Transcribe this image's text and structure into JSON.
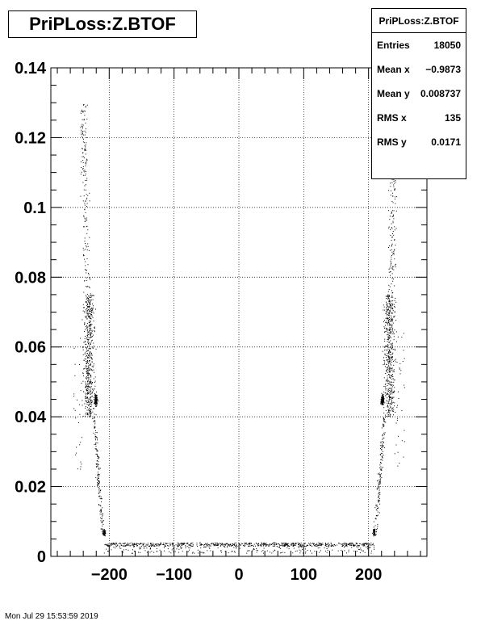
{
  "histogram_title": "PriPLoss:Z.BTOF",
  "stats": {
    "name": "PriPLoss:Z.BTOF",
    "entries_label": "Entries",
    "entries_value": "18050",
    "meanx_label": "Mean x",
    "meanx_value": "−0.9873",
    "meany_label": "Mean y",
    "meany_value": "0.008737",
    "rmsx_label": "RMS x",
    "rmsx_value": "135",
    "rmsy_label": "RMS y",
    "rmsy_value": "0.0171"
  },
  "footer_text": "Mon Jul 29 15:53:59 2019",
  "chart_data": {
    "type": "scatter",
    "title": "PriPLoss:Z.BTOF",
    "xlabel": "",
    "ylabel": "",
    "xlim": [
      -290,
      290
    ],
    "ylim": [
      0,
      0.14
    ],
    "grid": true,
    "x_ticks": [
      -200,
      -100,
      0,
      100,
      200
    ],
    "x_tick_labels": [
      "−200",
      "−100",
      "0",
      "100",
      "200"
    ],
    "y_ticks": [
      0,
      0.02,
      0.04,
      0.06,
      0.08,
      0.1,
      0.12,
      0.14
    ],
    "y_tick_labels": [
      "0",
      "0.02",
      "0.04",
      "0.06",
      "0.08",
      "0.1",
      "0.12",
      "0.14"
    ],
    "marker_color": "#000000",
    "regions": [
      {
        "name": "Flat band",
        "x": [
          -208,
          208
        ],
        "y_center": 0.0035,
        "y_spread": 0.0005
      },
      {
        "name": "Faint low band",
        "x": [
          -210,
          210
        ],
        "y_center": 0.002,
        "y_spread": 0.001
      },
      {
        "name": "Left wing",
        "x_center": -230,
        "y_range": [
          0.005,
          0.13
        ],
        "dense_cluster_y": [
          0.04,
          0.075
        ]
      },
      {
        "name": "Right wing",
        "x_center": 230,
        "y_range": [
          0.005,
          0.125
        ],
        "dense_cluster_y": [
          0.04,
          0.075
        ]
      },
      {
        "name": "Left knot",
        "x": -220,
        "y": 0.045
      },
      {
        "name": "Right knot",
        "x": 220,
        "y": 0.045
      }
    ]
  }
}
